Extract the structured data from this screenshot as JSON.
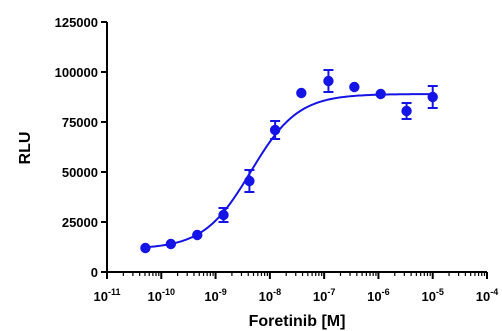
{
  "chart_data": {
    "type": "scatter",
    "title": "",
    "xlabel": "Foretinib [M]",
    "ylabel": "RLU",
    "xscale": "log",
    "xlim": [
      1e-11,
      0.0001
    ],
    "ylim": [
      0,
      125000
    ],
    "grid": false,
    "legend": "none",
    "x_ticks": [
      {
        "value": 1e-11,
        "base": "10",
        "exp": "-11"
      },
      {
        "value": 1e-10,
        "base": "10",
        "exp": "-10"
      },
      {
        "value": 1e-09,
        "base": "10",
        "exp": "-9"
      },
      {
        "value": 1e-08,
        "base": "10",
        "exp": "-8"
      },
      {
        "value": 1e-07,
        "base": "10",
        "exp": "-7"
      },
      {
        "value": 1e-06,
        "base": "10",
        "exp": "-6"
      },
      {
        "value": 1e-05,
        "base": "10",
        "exp": "-5"
      },
      {
        "value": 0.0001,
        "base": "10",
        "exp": "-4"
      }
    ],
    "y_ticks": [
      {
        "value": 0,
        "label": "0"
      },
      {
        "value": 25000,
        "label": "25000"
      },
      {
        "value": 50000,
        "label": "50000"
      },
      {
        "value": 75000,
        "label": "75000"
      },
      {
        "value": 100000,
        "label": "100000"
      },
      {
        "value": 125000,
        "label": "125000"
      }
    ],
    "points": [
      {
        "x": 5.1e-11,
        "y": 12000,
        "err": 0
      },
      {
        "x": 1.5e-10,
        "y": 14000,
        "err": 0
      },
      {
        "x": 4.6e-10,
        "y": 18500,
        "err": 0
      },
      {
        "x": 1.4e-09,
        "y": 28500,
        "err": 3500
      },
      {
        "x": 4.2e-09,
        "y": 45500,
        "err": 5500
      },
      {
        "x": 1.25e-08,
        "y": 71000,
        "err": 4500
      },
      {
        "x": 3.8e-08,
        "y": 89500,
        "err": 0
      },
      {
        "x": 1.2e-07,
        "y": 95500,
        "err": 5500
      },
      {
        "x": 3.6e-07,
        "y": 92500,
        "err": 0
      },
      {
        "x": 1.1e-06,
        "y": 89000,
        "err": 0
      },
      {
        "x": 3.3e-06,
        "y": 80500,
        "err": 4000
      },
      {
        "x": 1e-05,
        "y": 87500,
        "err": 5500
      }
    ],
    "fit": {
      "model": "sigmoidal-4pl",
      "bottom": 11500,
      "top": 89000,
      "log_ec50": -8.35,
      "hill": 1.0,
      "x_range": [
        5.1e-11,
        1e-05
      ]
    },
    "colors": {
      "series": "#1414e6",
      "axis": "#000000"
    }
  }
}
